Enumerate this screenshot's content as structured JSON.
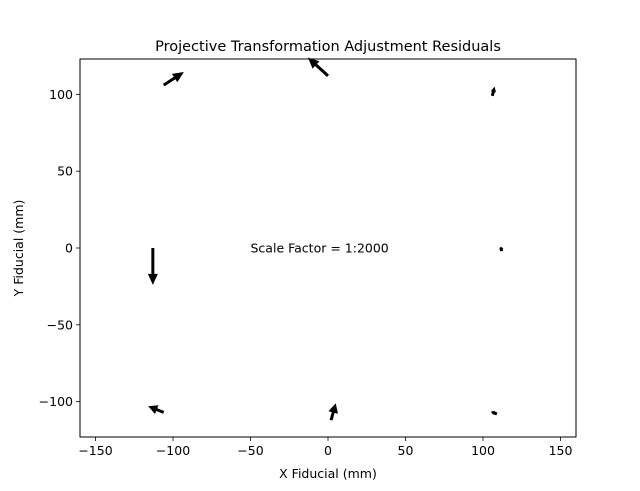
{
  "chart_data": {
    "type": "quiver",
    "title": "Projective Transformation Adjustment Residuals",
    "xlabel": "X Fiducial (mm)",
    "ylabel": "Y Fiducial (mm)",
    "xlim": [
      -160,
      160
    ],
    "ylim": [
      -123,
      123
    ],
    "xticks": [
      -150,
      -100,
      -50,
      0,
      50,
      100,
      150
    ],
    "xtick_labels": [
      "−150",
      "−100",
      "−50",
      "0",
      "50",
      "100",
      "150"
    ],
    "yticks": [
      -100,
      -50,
      0,
      50,
      100
    ],
    "ytick_labels": [
      "−100",
      "−50",
      "0",
      "50",
      "100"
    ],
    "annotation": {
      "text": "Scale Factor = 1:2000",
      "x": -50,
      "y": 0
    },
    "grid": false,
    "arrow_color": "#000000",
    "vectors": [
      {
        "x": -106,
        "y": 106,
        "u": 13,
        "v": 8.5
      },
      {
        "x": 0,
        "y": 112,
        "u": -13,
        "v": 12
      },
      {
        "x": 106,
        "y": 99,
        "u": 1.5,
        "v": 6
      },
      {
        "x": -113,
        "y": 0,
        "u": 0,
        "v": -24
      },
      {
        "x": 112,
        "y": -2,
        "u": -0.5,
        "v": 3
      },
      {
        "x": -106,
        "y": -107,
        "u": -10,
        "v": 4
      },
      {
        "x": 2,
        "y": -112,
        "u": 3,
        "v": 11
      },
      {
        "x": 109,
        "y": -108,
        "u": -4,
        "v": 1.5
      }
    ]
  }
}
